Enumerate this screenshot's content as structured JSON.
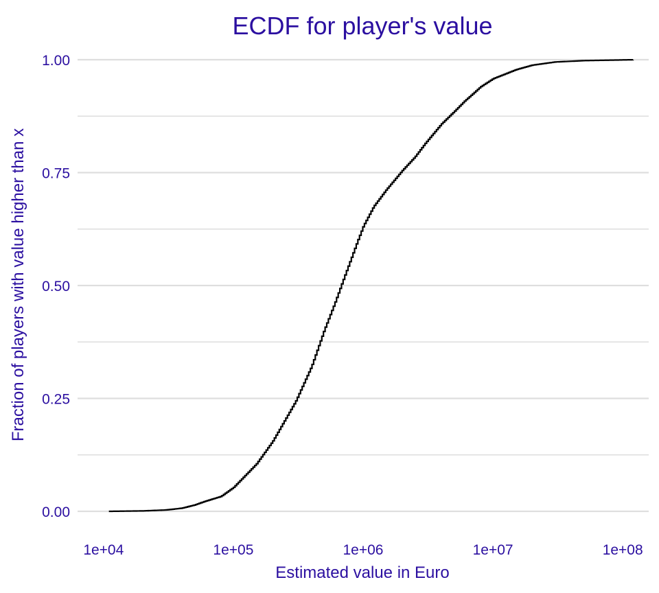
{
  "chart_data": {
    "type": "line",
    "step": true,
    "title": "ECDF for player's value",
    "xlabel": "Estimated value in Euro",
    "ylabel": "Fraction of players with value higher than x",
    "x_scale": "log10",
    "xlim": [
      10000,
      150000000
    ],
    "ylim": [
      0,
      1
    ],
    "x_ticks": [
      10000,
      100000,
      1000000,
      10000000,
      100000000
    ],
    "x_tick_labels": [
      "1e+04",
      "1e+05",
      "1e+06",
      "1e+07",
      "1e+08"
    ],
    "y_ticks": [
      0,
      0.25,
      0.5,
      0.75,
      1
    ],
    "y_tick_labels": [
      "0.00",
      "0.25",
      "0.50",
      "0.75",
      "1.00"
    ],
    "grid": true,
    "series": [
      {
        "x": [
          11000,
          20000,
          30000,
          40000,
          50000,
          60000,
          80000,
          100000,
          150000,
          200000,
          300000,
          400000,
          500000,
          600000,
          700000,
          800000,
          900000,
          1000000,
          1200000,
          1500000,
          2000000,
          2500000,
          3000000,
          4000000,
          5000000,
          6000000,
          7000000,
          8000000,
          10000000,
          15000000,
          20000000,
          30000000,
          50000000,
          80000000,
          120000000
        ],
        "y": [
          0.0,
          0.001,
          0.003,
          0.007,
          0.014,
          0.022,
          0.033,
          0.053,
          0.105,
          0.155,
          0.243,
          0.322,
          0.402,
          0.46,
          0.513,
          0.558,
          0.598,
          0.632,
          0.675,
          0.712,
          0.755,
          0.785,
          0.815,
          0.858,
          0.885,
          0.908,
          0.925,
          0.94,
          0.958,
          0.978,
          0.988,
          0.995,
          0.998,
          0.999,
          1.0
        ]
      }
    ],
    "colors": {
      "text": "#2b0fa0",
      "grid": "#dedede",
      "line": "#000000",
      "background": "#ffffff"
    }
  }
}
